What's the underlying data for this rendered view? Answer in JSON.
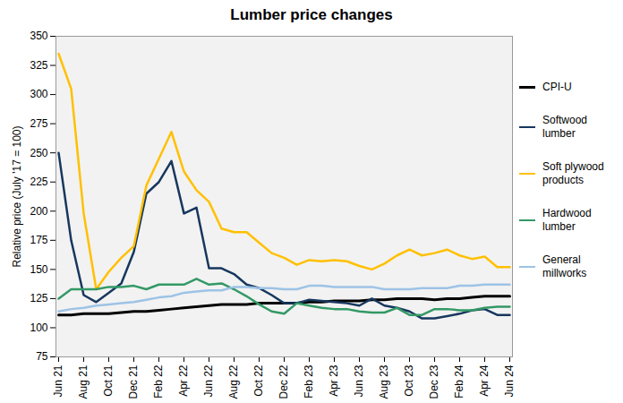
{
  "chart_data": {
    "type": "line",
    "title": "Lumber price changes",
    "y_label": "Relative price (July '17 = 100)",
    "categories": [
      "Jun 21",
      null,
      "Aug 21",
      null,
      "Oct 21",
      null,
      "Dec 21",
      null,
      "Feb 22",
      null,
      "Apr 22",
      null,
      "Jun 22",
      null,
      "Aug 22",
      null,
      "Oct 22",
      null,
      "Dec 22",
      null,
      "Feb 23",
      null,
      "Apr 23",
      null,
      "Jun 23",
      null,
      "Aug 23",
      null,
      "Oct 23",
      null,
      "Dec 23",
      null,
      "Feb 24",
      null,
      "Apr 24",
      null,
      "Jun 24"
    ],
    "series": [
      {
        "name": "CPI-U",
        "color": "#000000",
        "values": [
          111,
          111,
          112,
          112,
          112,
          113,
          114,
          114,
          115,
          116,
          117,
          118,
          119,
          120,
          120,
          120,
          121,
          121,
          121,
          121,
          122,
          122,
          123,
          123,
          123,
          124,
          124,
          125,
          125,
          125,
          124,
          125,
          125,
          126,
          127,
          127,
          127
        ]
      },
      {
        "name": "Softwood lumber",
        "color": "#17375e",
        "values": [
          250,
          175,
          128,
          122,
          130,
          138,
          165,
          215,
          225,
          243,
          198,
          203,
          151,
          151,
          146,
          137,
          134,
          128,
          121,
          121,
          124,
          123,
          122,
          121,
          119,
          125,
          119,
          117,
          114,
          108,
          108,
          110,
          112,
          115,
          116,
          111,
          111
        ]
      },
      {
        "name": "Soft plywood products",
        "color": "#ffc000",
        "values": [
          335,
          305,
          198,
          133,
          148,
          160,
          170,
          222,
          245,
          268,
          234,
          218,
          208,
          185,
          182,
          182,
          173,
          164,
          160,
          154,
          158,
          157,
          158,
          157,
          153,
          150,
          155,
          162,
          167,
          162,
          164,
          167,
          162,
          159,
          161,
          152,
          152
        ]
      },
      {
        "name": "Hardwood lumber",
        "color": "#339966",
        "values": [
          125,
          133,
          133,
          133,
          135,
          135,
          136,
          133,
          137,
          137,
          137,
          142,
          137,
          138,
          133,
          127,
          120,
          114,
          112,
          121,
          119,
          117,
          116,
          116,
          114,
          113,
          113,
          117,
          111,
          111,
          116,
          116,
          115,
          115,
          117,
          118,
          118
        ]
      },
      {
        "name": "General millworks",
        "color": "#9dc3e6",
        "values": [
          114,
          116,
          117,
          119,
          120,
          121,
          122,
          124,
          126,
          127,
          130,
          131,
          132,
          132,
          135,
          135,
          134,
          134,
          133,
          133,
          136,
          136,
          135,
          135,
          135,
          135,
          133,
          133,
          133,
          134,
          134,
          134,
          136,
          136,
          137,
          137,
          137
        ]
      }
    ],
    "ylim": [
      75,
      350
    ],
    "yticks": [
      75,
      100,
      125,
      150,
      175,
      200,
      225,
      250,
      275,
      300,
      325,
      350
    ],
    "grid": false,
    "legend": "right"
  }
}
